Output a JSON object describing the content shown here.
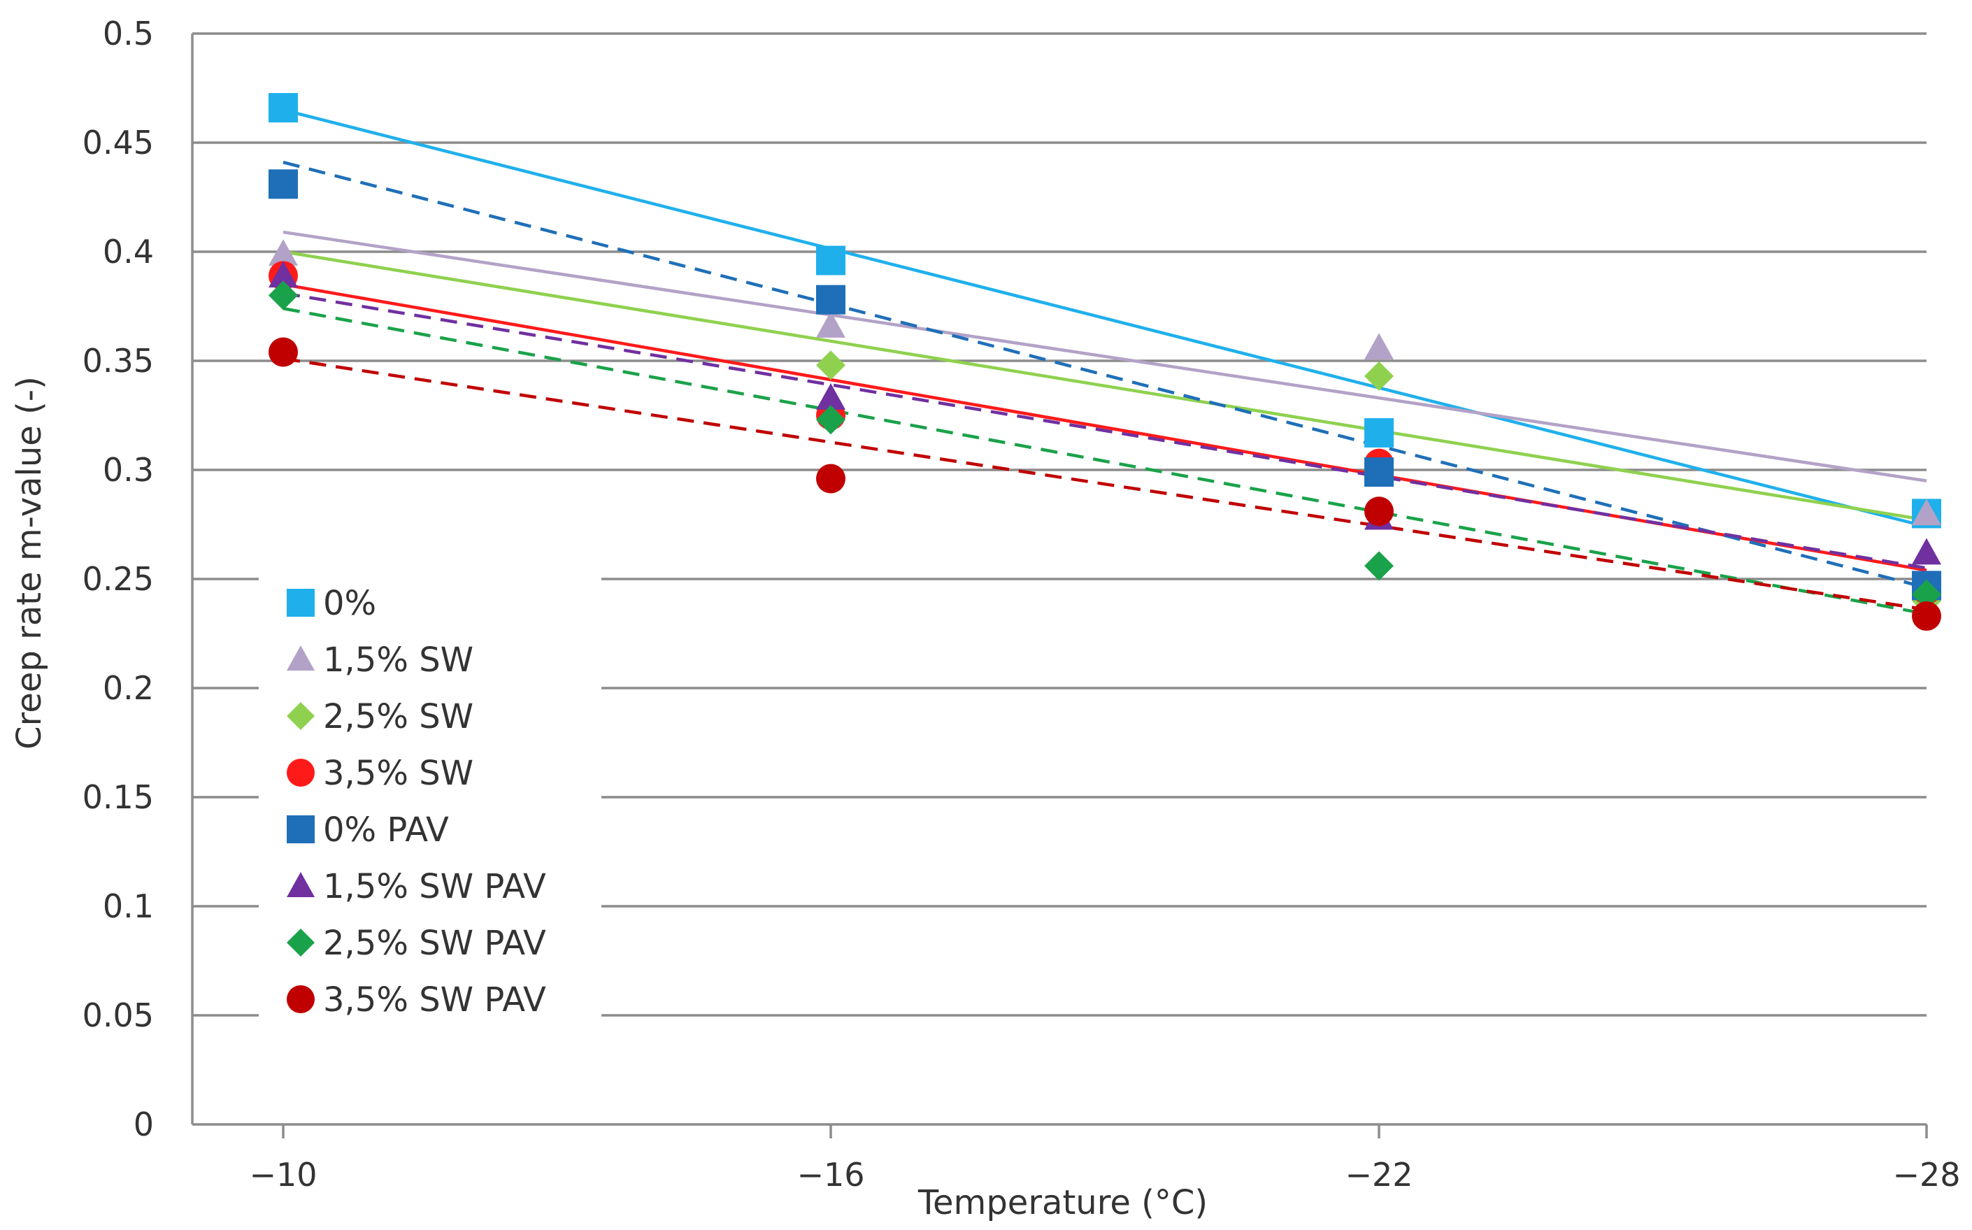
{
  "chart_data": {
    "type": "scatter",
    "title": "",
    "xlabel": "Temperature (°C)",
    "ylabel": "Creep rate m-value (-)",
    "categories": [
      "−10",
      "−16",
      "−22",
      "−28"
    ],
    "ylim": [
      0,
      0.5
    ],
    "yticks": [
      "0",
      "0.05",
      "0.1",
      "0.15",
      "0.2",
      "0.25",
      "0.3",
      "0.35",
      "0.4",
      "0.45",
      "0.5"
    ],
    "grid": true,
    "legend_position": "left-middle",
    "series": [
      {
        "name": "0%",
        "values": [
          0.466,
          0.396,
          0.317,
          0.28
        ],
        "marker": "square",
        "color": "#1fb0ec",
        "trend": [
          0.465,
          0.274
        ],
        "trend_style": "solid"
      },
      {
        "name": "1,5% SW",
        "values": [
          0.399,
          0.366,
          0.356,
          0.28
        ],
        "marker": "triangle",
        "color": "#b3a2c7",
        "trend": [
          0.409,
          0.295
        ],
        "trend_style": "solid"
      },
      {
        "name": "2,5% SW",
        "values": [
          0.38,
          0.348,
          0.343,
          0.24
        ],
        "marker": "diamond",
        "color": "#8fd14f",
        "trend": [
          0.4,
          0.277
        ],
        "trend_style": "solid"
      },
      {
        "name": "3,5% SW",
        "values": [
          0.389,
          0.325,
          0.303,
          0.245
        ],
        "marker": "circle",
        "color": "#ff1a1a",
        "trend": [
          0.385,
          0.254
        ],
        "trend_style": "solid"
      },
      {
        "name": "0% PAV",
        "values": [
          0.431,
          0.378,
          0.299,
          0.247
        ],
        "marker": "square",
        "color": "#1f6fb8",
        "trend": [
          0.441,
          0.246
        ],
        "trend_style": "dashed"
      },
      {
        "name": "1,5% SW PAV",
        "values": [
          0.389,
          0.333,
          0.278,
          0.262
        ],
        "marker": "triangle",
        "color": "#7030a0",
        "trend": [
          0.381,
          0.255
        ],
        "trend_style": "dashed"
      },
      {
        "name": "2,5% SW PAV",
        "values": [
          0.38,
          0.323,
          0.256,
          0.243
        ],
        "marker": "diamond",
        "color": "#1aa24a",
        "trend": [
          0.374,
          0.234
        ],
        "trend_style": "dashed"
      },
      {
        "name": "3,5% SW PAV",
        "values": [
          0.354,
          0.296,
          0.281,
          0.233
        ],
        "marker": "circle",
        "color": "#c00000",
        "trend": [
          0.351,
          0.236
        ],
        "trend_style": "dashed"
      }
    ]
  }
}
